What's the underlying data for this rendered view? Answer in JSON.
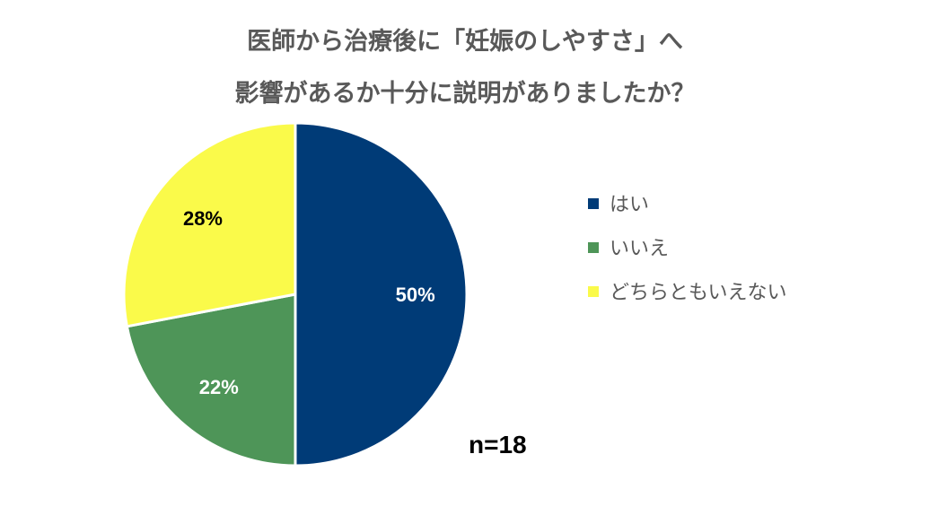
{
  "chart_data": {
    "type": "pie",
    "title_lines": [
      "医師から治療後に「妊娠のしやすさ」へ",
      "影響があるか十分に説明がありましたか？"
    ],
    "slices": [
      {
        "label": "はい",
        "value": 50,
        "display": "50%",
        "color": "#003B77",
        "label_color": "#FFFFFF"
      },
      {
        "label": "いいえ",
        "value": 22,
        "display": "22%",
        "color": "#4E9558",
        "label_color": "#FFFFFF"
      },
      {
        "label": "どちらともいえない",
        "value": 28,
        "display": "28%",
        "color": "#FAFA4A",
        "label_color": "#000000"
      }
    ],
    "legend_position": "right",
    "sample_size": "n=18"
  }
}
